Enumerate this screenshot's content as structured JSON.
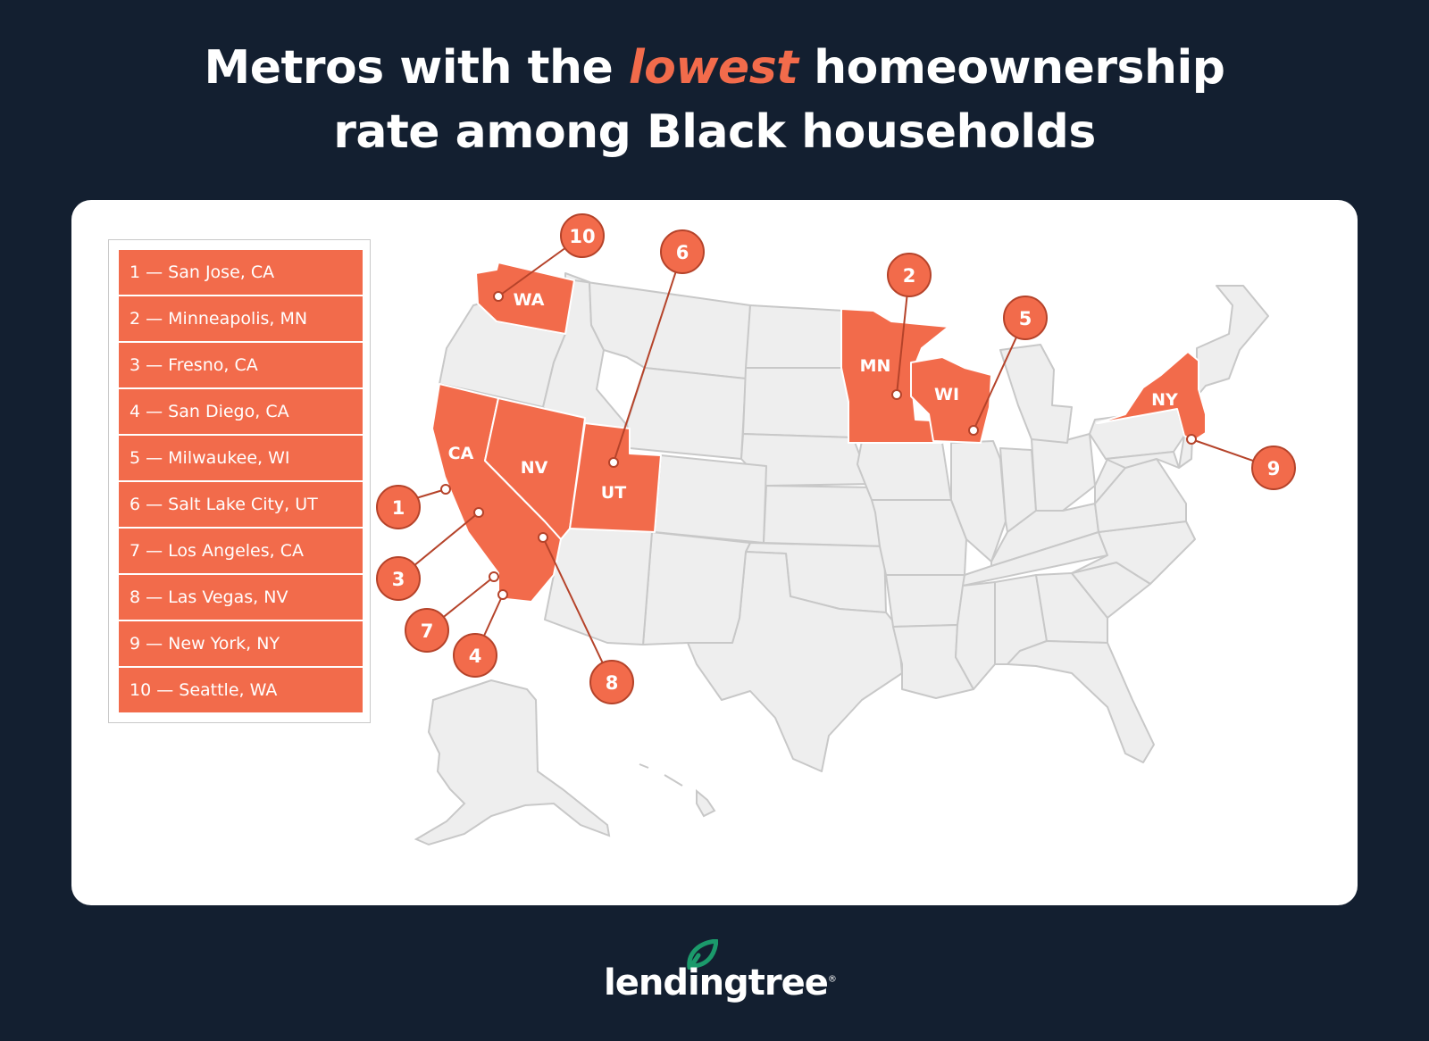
{
  "title": {
    "line1_before": "Metros with the ",
    "line1_highlight": "lowest",
    "line1_after": " homeownership",
    "line2": "rate among Black households"
  },
  "legend": [
    "1 — San Jose, CA",
    "2 — Minneapolis, MN",
    "3 — Fresno, CA",
    "4 — San Diego, CA",
    "5 — Milwaukee, WI",
    "6 — Salt Lake City, UT",
    "7 — Los Angeles, CA",
    "8 — Las Vegas, NV",
    "9 — New York, NY",
    "10 — Seattle, WA"
  ],
  "highlighted_states": [
    "WA",
    "CA",
    "NV",
    "UT",
    "MN",
    "WI",
    "NY"
  ],
  "markers": [
    {
      "rank": "1",
      "city": "San Jose"
    },
    {
      "rank": "2",
      "city": "Minneapolis"
    },
    {
      "rank": "3",
      "city": "Fresno"
    },
    {
      "rank": "4",
      "city": "San Diego"
    },
    {
      "rank": "5",
      "city": "Milwaukee"
    },
    {
      "rank": "6",
      "city": "Salt Lake City"
    },
    {
      "rank": "7",
      "city": "Los Angeles"
    },
    {
      "rank": "8",
      "city": "Las Vegas"
    },
    {
      "rank": "9",
      "city": "New York"
    },
    {
      "rank": "10",
      "city": "Seattle"
    }
  ],
  "brand": {
    "name": "lendingtree",
    "mark": "®"
  },
  "colors": {
    "background": "#131f30",
    "highlight": "#f26b4b",
    "state_fill": "#eeeeee",
    "state_stroke": "#c8c8c8",
    "marker_stroke": "#b5432a",
    "logo_leaf": "#1b9a6b"
  }
}
